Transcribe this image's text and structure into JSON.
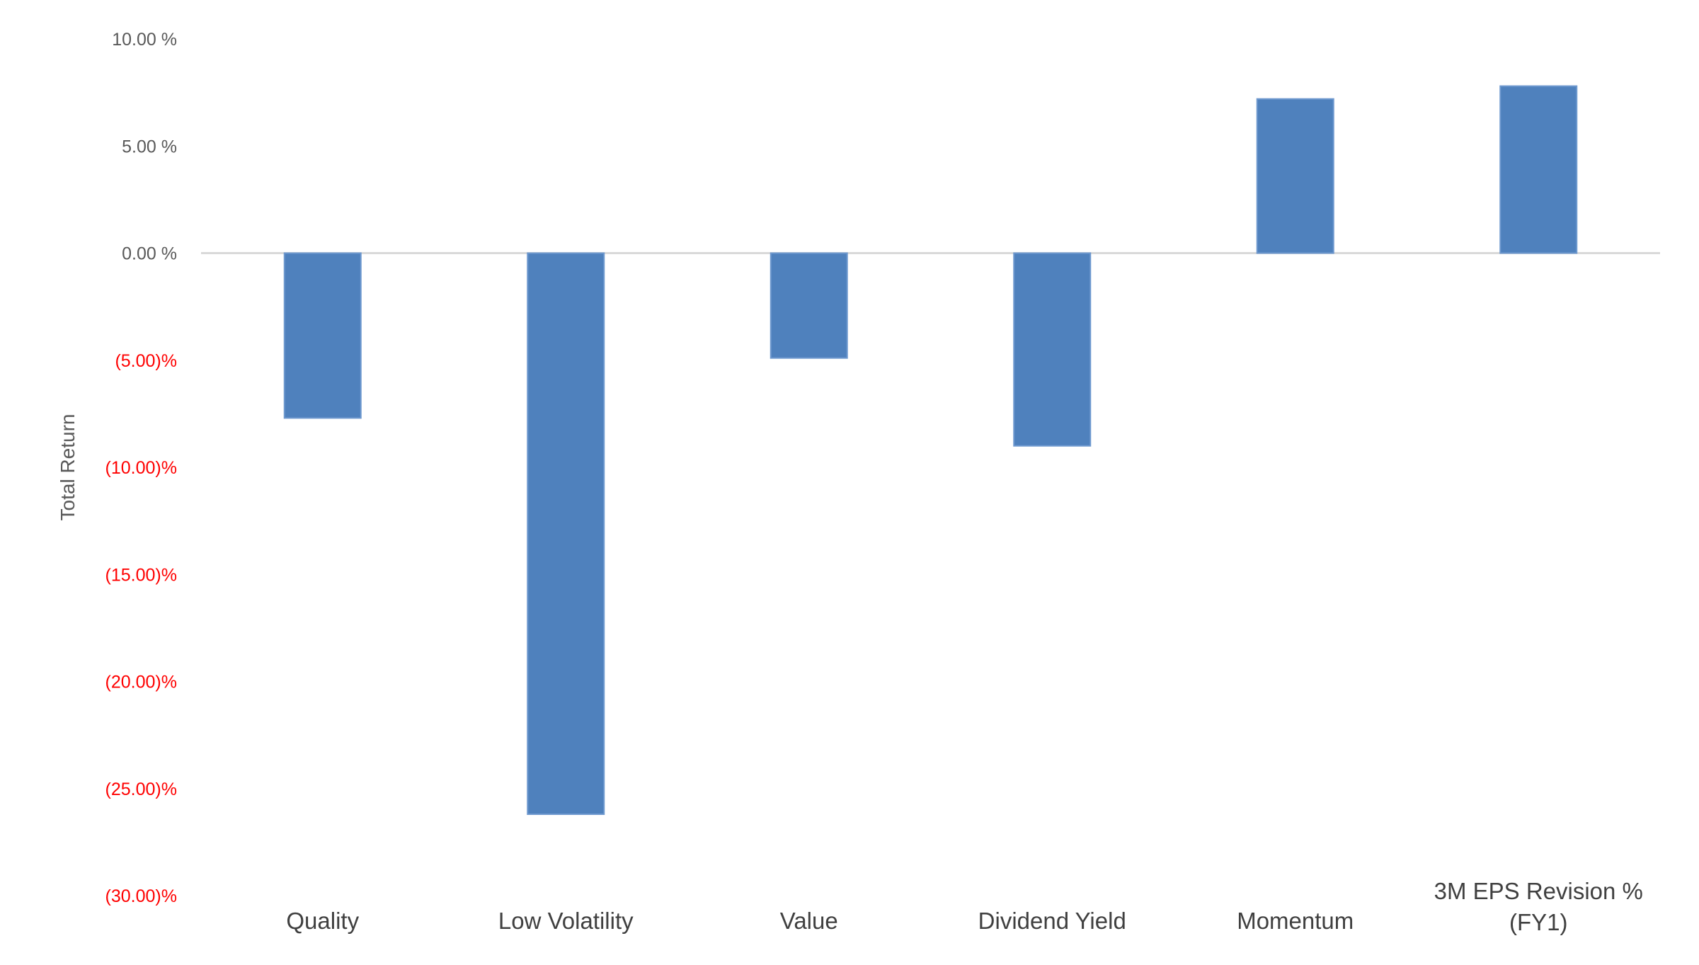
{
  "chart_data": {
    "type": "bar",
    "title": "",
    "xlabel": "",
    "ylabel": "Total Return",
    "categories": [
      "Quality",
      "Low Volatility",
      "Value",
      "Dividend Yield",
      "Momentum",
      [
        "3M EPS Revision %",
        "(FY1)"
      ]
    ],
    "values": [
      -7.7,
      -26.2,
      -4.9,
      -9.0,
      7.2,
      7.8
    ],
    "ylim": [
      -30,
      10
    ],
    "yticks": [
      10,
      5,
      0,
      -5,
      -10,
      -15,
      -20,
      -25,
      -30
    ],
    "ytick_labels": [
      "10.00 %",
      "5.00 %",
      "0.00 %",
      "(5.00)%",
      "(10.00)%",
      "(15.00)%",
      "(20.00)%",
      "(25.00)%",
      "(30.00)%"
    ],
    "grid": false,
    "legend": "none",
    "colors": {
      "bar": "#4f81bd",
      "bar_edge": "#6f99cf",
      "positive_tick": "#595959",
      "negative_tick": "#ff0000",
      "axis_title": "#595959",
      "category_label": "#404040",
      "zero_line": "#d9d9d9"
    }
  }
}
